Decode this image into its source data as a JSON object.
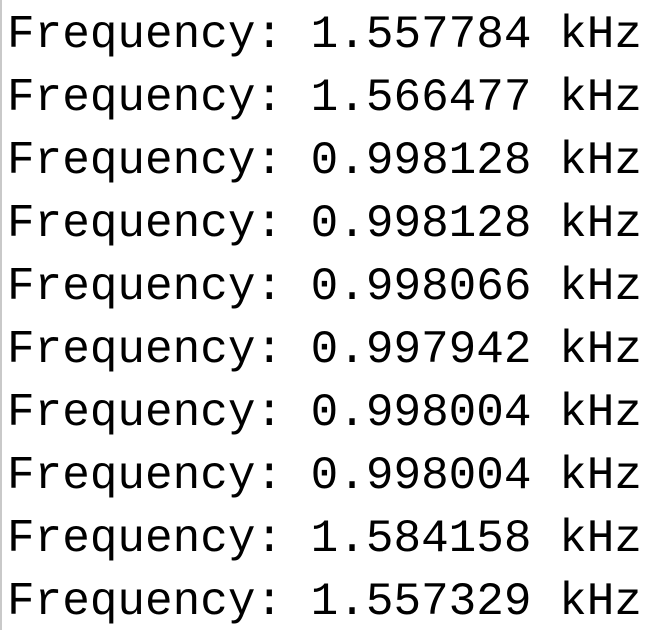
{
  "console": {
    "lines": [
      {
        "label": "Frequency:",
        "value": "1.557784",
        "unit": "kHz"
      },
      {
        "label": "Frequency:",
        "value": "1.566477",
        "unit": "kHz"
      },
      {
        "label": "Frequency:",
        "value": "0.998128",
        "unit": "kHz"
      },
      {
        "label": "Frequency:",
        "value": "0.998128",
        "unit": "kHz"
      },
      {
        "label": "Frequency:",
        "value": "0.998066",
        "unit": "kHz"
      },
      {
        "label": "Frequency:",
        "value": "0.997942",
        "unit": "kHz"
      },
      {
        "label": "Frequency:",
        "value": "0.998004",
        "unit": "kHz"
      },
      {
        "label": "Frequency:",
        "value": "0.998004",
        "unit": "kHz"
      },
      {
        "label": "Frequency:",
        "value": "1.584158",
        "unit": "kHz"
      },
      {
        "label": "Frequency:",
        "value": "1.557329",
        "unit": "kHz"
      }
    ],
    "border_color": "#c9c9c9",
    "text_color": "#000000",
    "background_color": "#ffffff"
  }
}
